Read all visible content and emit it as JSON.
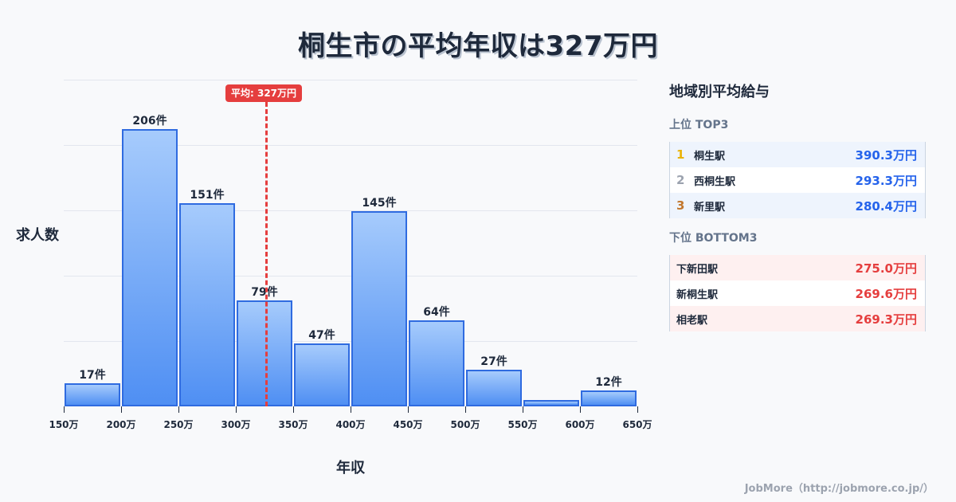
{
  "title": "桐生市の平均年収は327万円",
  "chart_data": {
    "type": "bar",
    "title": "桐生市の平均年収は327万円",
    "xlabel": "年収",
    "ylabel": "求人数",
    "categories": [
      "150-200万",
      "200-250万",
      "250-300万",
      "300-350万",
      "350-400万",
      "400-450万",
      "450-500万",
      "500-550万",
      "550-600万",
      "600-650万"
    ],
    "bin_edges": [
      150,
      200,
      250,
      300,
      350,
      400,
      450,
      500,
      550,
      600,
      650
    ],
    "values": [
      17,
      206,
      151,
      79,
      47,
      145,
      64,
      27,
      5,
      12
    ],
    "value_labels": [
      "17件",
      "206件",
      "151件",
      "79件",
      "47件",
      "145件",
      "64件",
      "27件",
      "",
      "12件"
    ],
    "x_tick_labels": [
      "150万",
      "200万",
      "250万",
      "300万",
      "350万",
      "400万",
      "450万",
      "500万",
      "550万",
      "600万",
      "650万"
    ],
    "xlim": [
      150,
      650
    ],
    "ylim": [
      0,
      242
    ],
    "grid": true,
    "mean": {
      "value": 327,
      "label": "平均: 327万円",
      "color": "#e53e3e"
    },
    "bar_color": "#4f8ff3",
    "bar_border_color": "#2f6be0"
  },
  "panel": {
    "title": "地域別平均給与",
    "top": {
      "heading": "上位 TOP3",
      "items": [
        {
          "rank": "1",
          "name": "桐生駅",
          "value": "390.3万円",
          "rank_color": "#eab308"
        },
        {
          "rank": "2",
          "name": "西桐生駅",
          "value": "293.3万円",
          "rank_color": "#9ca3af"
        },
        {
          "rank": "3",
          "name": "新里駅",
          "value": "280.4万円",
          "rank_color": "#c2772d"
        }
      ]
    },
    "bottom": {
      "heading": "下位 BOTTOM3",
      "items": [
        {
          "name": "下新田駅",
          "value": "275.0万円"
        },
        {
          "name": "新桐生駅",
          "value": "269.6万円"
        },
        {
          "name": "相老駅",
          "value": "269.3万円"
        }
      ]
    }
  },
  "footer": "JobMore（http://jobmore.co.jp/）"
}
